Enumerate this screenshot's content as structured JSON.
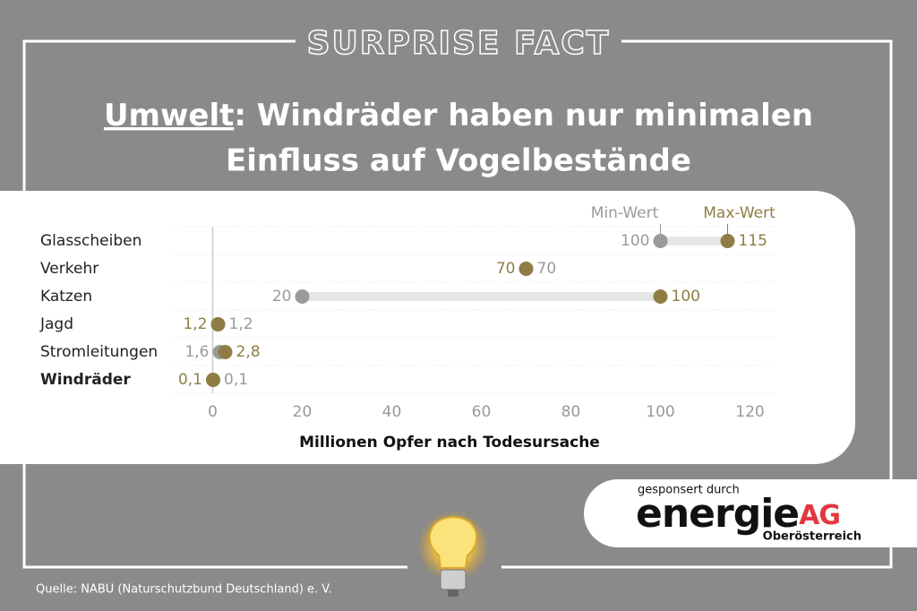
{
  "header": "SURPRISE FACT",
  "chart_data": {
    "type": "dumbbell",
    "title_highlight": "Umwelt",
    "title_lines": [
      ": Windräder haben nur minimalen",
      "Einfluss auf Vogelbestände"
    ],
    "categories": [
      "Glasscheiben",
      "Verkehr",
      "Katzen",
      "Jagd",
      "Stromleitungen",
      "Windräder"
    ],
    "series": [
      {
        "name": "Min-Wert",
        "color": "#9a9a9a",
        "values": [
          100,
          70,
          20,
          1.2,
          1.6,
          0.1
        ],
        "value_labels": [
          "100",
          "70",
          "20",
          "1,2",
          "1,6",
          "0,1"
        ]
      },
      {
        "name": "Max-Wert",
        "color": "#8f7d45",
        "values": [
          115,
          70,
          100,
          1.2,
          2.8,
          0.1
        ],
        "value_labels": [
          "115",
          "70",
          "100",
          "1,2",
          "2,8",
          "0,1"
        ]
      }
    ],
    "xlim": [
      -8.5,
      125.5
    ],
    "xticks": [
      0,
      20,
      40,
      60,
      80,
      100,
      120
    ],
    "xlabel": "Millionen Opfer nach Todesursache"
  },
  "sponsor": {
    "intro": "gesponsert durch",
    "brand": "energie",
    "brand_suffix": "AG",
    "region": "Oberösterreich"
  },
  "source": "Quelle: NABU (Naturschutzbund Deutschland) e. V."
}
